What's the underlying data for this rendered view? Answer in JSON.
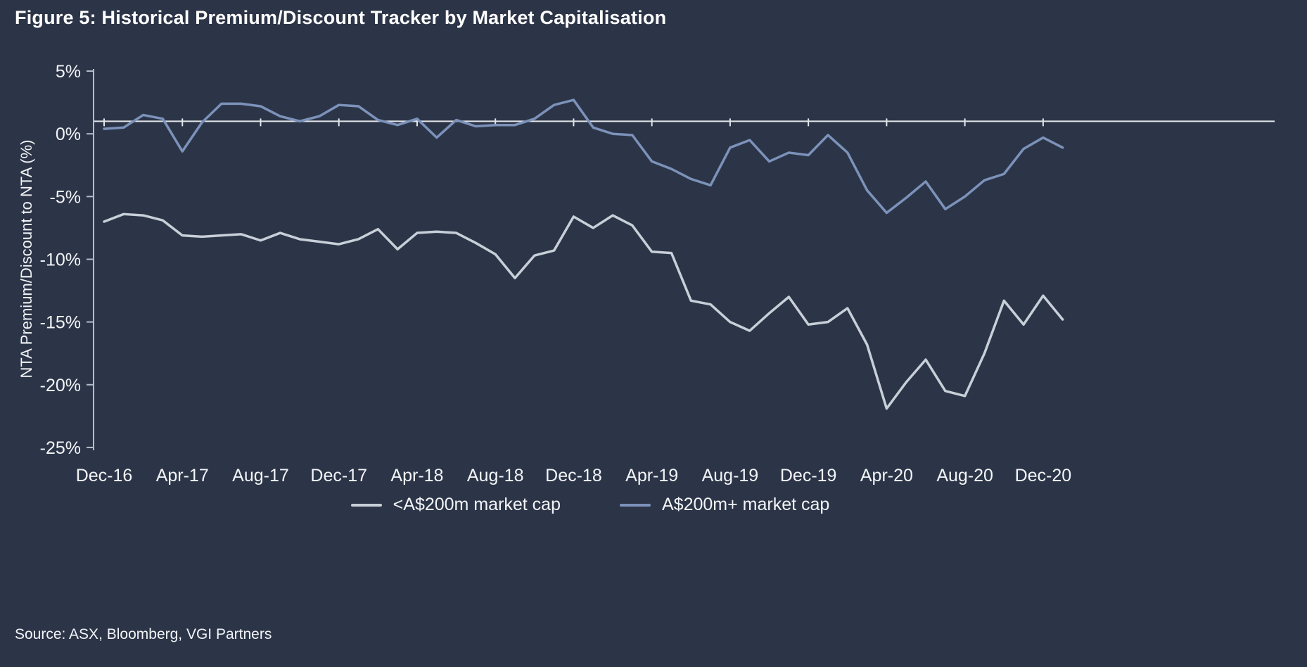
{
  "title": "Figure 5: Historical Premium/Discount Tracker by Market Capitalisation",
  "source": "Source: ASX, Bloomberg, VGI Partners",
  "colors": {
    "background": "#2c3547",
    "title_text": "#ffffff",
    "axis_text": "#f2f4f7",
    "axis_line": "#b6bdc8",
    "reference_line": "#e2e5ea",
    "series_small_cap": "#c8cfd8",
    "series_large_cap": "#7c92ba"
  },
  "chart_data": {
    "type": "line",
    "title": "Figure 5: Historical Premium/Discount Tracker by Market Capitalisation",
    "xlabel": "",
    "ylabel": "NTA Premium/Discount to NTA (%)",
    "ylim": [
      -25,
      5
    ],
    "yticks": [
      5,
      0,
      -5,
      -10,
      -15,
      -20,
      -25
    ],
    "ytick_labels": [
      "5%",
      "0%",
      "-5%",
      "-10%",
      "-15%",
      "-20%",
      "-25%"
    ],
    "reference_line_y": 1,
    "grid": false,
    "legend_position": "bottom",
    "xtick_every": 4,
    "xtick_labels": [
      "Dec-16",
      "Apr-17",
      "Aug-17",
      "Dec-17",
      "Apr-18",
      "Aug-18",
      "Dec-18",
      "Apr-19",
      "Aug-19",
      "Dec-19",
      "Apr-20",
      "Aug-20",
      "Dec-20"
    ],
    "x": [
      "Dec-16",
      "Jan-17",
      "Feb-17",
      "Mar-17",
      "Apr-17",
      "May-17",
      "Jun-17",
      "Jul-17",
      "Aug-17",
      "Sep-17",
      "Oct-17",
      "Nov-17",
      "Dec-17",
      "Jan-18",
      "Feb-18",
      "Mar-18",
      "Apr-18",
      "May-18",
      "Jun-18",
      "Jul-18",
      "Aug-18",
      "Sep-18",
      "Oct-18",
      "Nov-18",
      "Dec-18",
      "Jan-19",
      "Feb-19",
      "Mar-19",
      "Apr-19",
      "May-19",
      "Jun-19",
      "Jul-19",
      "Aug-19",
      "Sep-19",
      "Oct-19",
      "Nov-19",
      "Dec-19",
      "Jan-20",
      "Feb-20",
      "Mar-20",
      "Apr-20",
      "May-20",
      "Jun-20",
      "Jul-20",
      "Aug-20",
      "Sep-20",
      "Oct-20",
      "Nov-20",
      "Dec-20",
      "Jan-21"
    ],
    "series": [
      {
        "name": "<A$200m market cap",
        "color_key": "series_small_cap",
        "values": [
          -7.0,
          -6.4,
          -6.5,
          -6.9,
          -8.1,
          -8.2,
          -8.1,
          -8.0,
          -8.5,
          -7.9,
          -8.4,
          -8.6,
          -8.8,
          -8.4,
          -7.6,
          -9.2,
          -7.9,
          -7.8,
          -7.9,
          -8.7,
          -9.6,
          -11.5,
          -9.7,
          -9.3,
          -6.6,
          -7.5,
          -6.5,
          -7.3,
          -9.4,
          -9.5,
          -13.3,
          -13.6,
          -15.0,
          -15.7,
          -14.3,
          -13.0,
          -15.2,
          -15.0,
          -13.9,
          -16.8,
          -21.9,
          -19.8,
          -18.0,
          -20.5,
          -20.9,
          -17.5,
          -13.3,
          -15.2,
          -12.9,
          -14.8
        ]
      },
      {
        "name": "A$200m+ market cap",
        "color_key": "series_large_cap",
        "values": [
          0.4,
          0.5,
          1.5,
          1.2,
          -1.4,
          0.9,
          2.4,
          2.4,
          2.2,
          1.4,
          1.0,
          1.4,
          2.3,
          2.2,
          1.1,
          0.7,
          1.2,
          -0.3,
          1.1,
          0.6,
          0.7,
          0.7,
          1.2,
          2.3,
          2.7,
          0.5,
          0.0,
          -0.1,
          -2.2,
          -2.8,
          -3.6,
          -4.1,
          -1.1,
          -0.5,
          -2.2,
          -1.5,
          -1.7,
          -0.1,
          -1.5,
          -4.5,
          -6.3,
          -5.1,
          -3.8,
          -6.0,
          -5.0,
          -3.7,
          -3.2,
          -1.2,
          -0.3,
          -1.1
        ]
      }
    ]
  }
}
